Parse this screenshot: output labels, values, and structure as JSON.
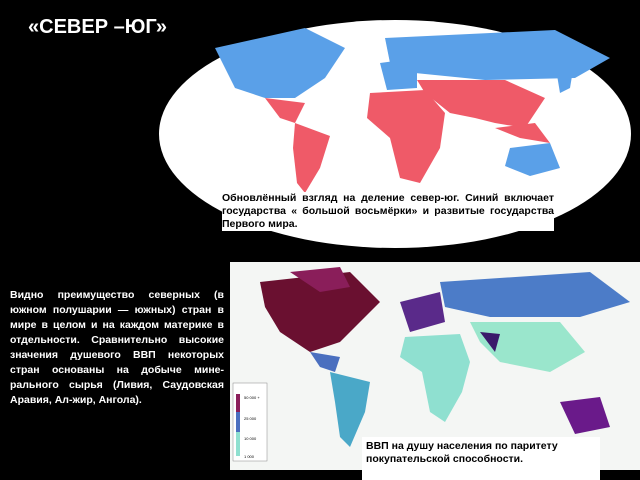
{
  "title": "«СЕВЕР –ЮГ»",
  "top_map": {
    "caption": "Обновлённый взгляд на деление север-юг. Синий включает государства « большой восьмёрки» и развитые государства Первого мира."
  },
  "left_text": "Видно преимущество северных (в южном полушарии — южных) стран в мире в целом и на каждом материке в отдельности. Сравнительно высокие значения душевого ВВП некоторых стран основаны на добыче мине-рального сырья (Ливия, Саудовская Аравия, Ал-жир, Ангола).",
  "bottom_map": {
    "caption": "ВВП на душу населения по паритету покупательской способности.",
    "legend": [
      "50 000 +",
      "25 000",
      "10 000",
      "1 000"
    ]
  }
}
